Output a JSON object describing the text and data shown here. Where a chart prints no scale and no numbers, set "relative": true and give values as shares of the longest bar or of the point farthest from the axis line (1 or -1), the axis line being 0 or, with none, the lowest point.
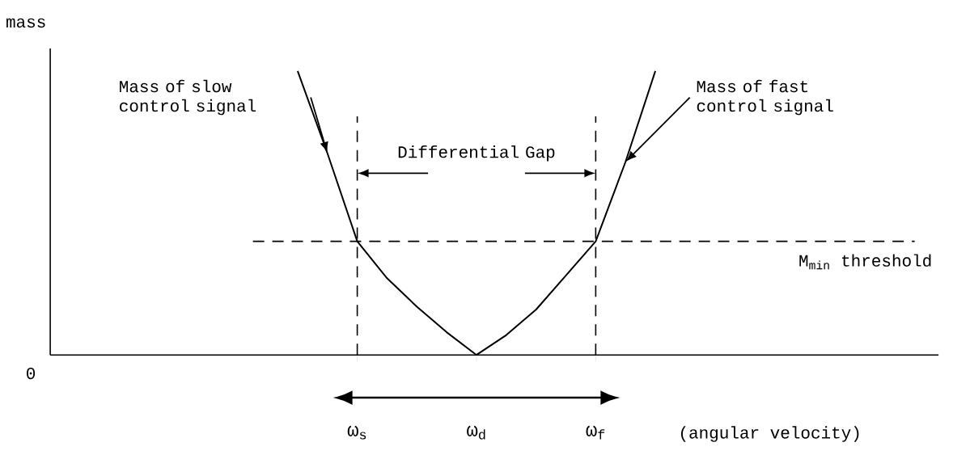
{
  "chart_data": {
    "type": "line",
    "relative": true,
    "ylabel": "mass",
    "xlabel": "(angular velocity)",
    "categories": [
      null,
      null,
      null,
      null,
      null,
      null,
      null,
      null,
      null,
      null,
      "ω$_{s}$",
      null,
      null,
      null,
      "ω$_{d}$",
      null,
      null,
      null,
      "ω$_{f}$",
      null,
      null,
      null,
      null,
      null,
      null,
      null,
      null,
      null,
      null,
      null
    ],
    "series": [
      {
        "name": "Mass of slow control signal",
        "color": "#000000",
        "values": [
          null,
          null,
          null,
          null,
          null,
          null,
          null,
          null,
          1,
          0.71,
          0.4,
          0.27,
          0.17,
          0.08,
          0,
          null,
          null,
          null,
          null,
          null,
          null,
          null,
          null,
          null,
          null,
          null,
          null,
          null,
          null,
          null
        ]
      },
      {
        "name": "Mass of fast control signal",
        "color": "#000000",
        "values": [
          null,
          null,
          null,
          null,
          null,
          null,
          null,
          null,
          null,
          null,
          null,
          null,
          null,
          null,
          0,
          0.07,
          0.16,
          0.28,
          0.4,
          0.68,
          1,
          null,
          null,
          null,
          null,
          null,
          null,
          null,
          null,
          null
        ]
      }
    ],
    "ref_lines": [
      {
        "axis": "y",
        "value": 0.4,
        "label": "M$_{min}$ threshold",
        "line_style": "dashed"
      },
      {
        "axis": "x",
        "value": "ω$_{s}$",
        "line_style": "dashed"
      },
      {
        "axis": "x",
        "value": "ω$_{f}$",
        "line_style": "dashed"
      }
    ],
    "annotations": [
      "0",
      "Differential Gap"
    ],
    "line_style": "solid",
    "marker": "none",
    "grid": false,
    "legend": false
  }
}
